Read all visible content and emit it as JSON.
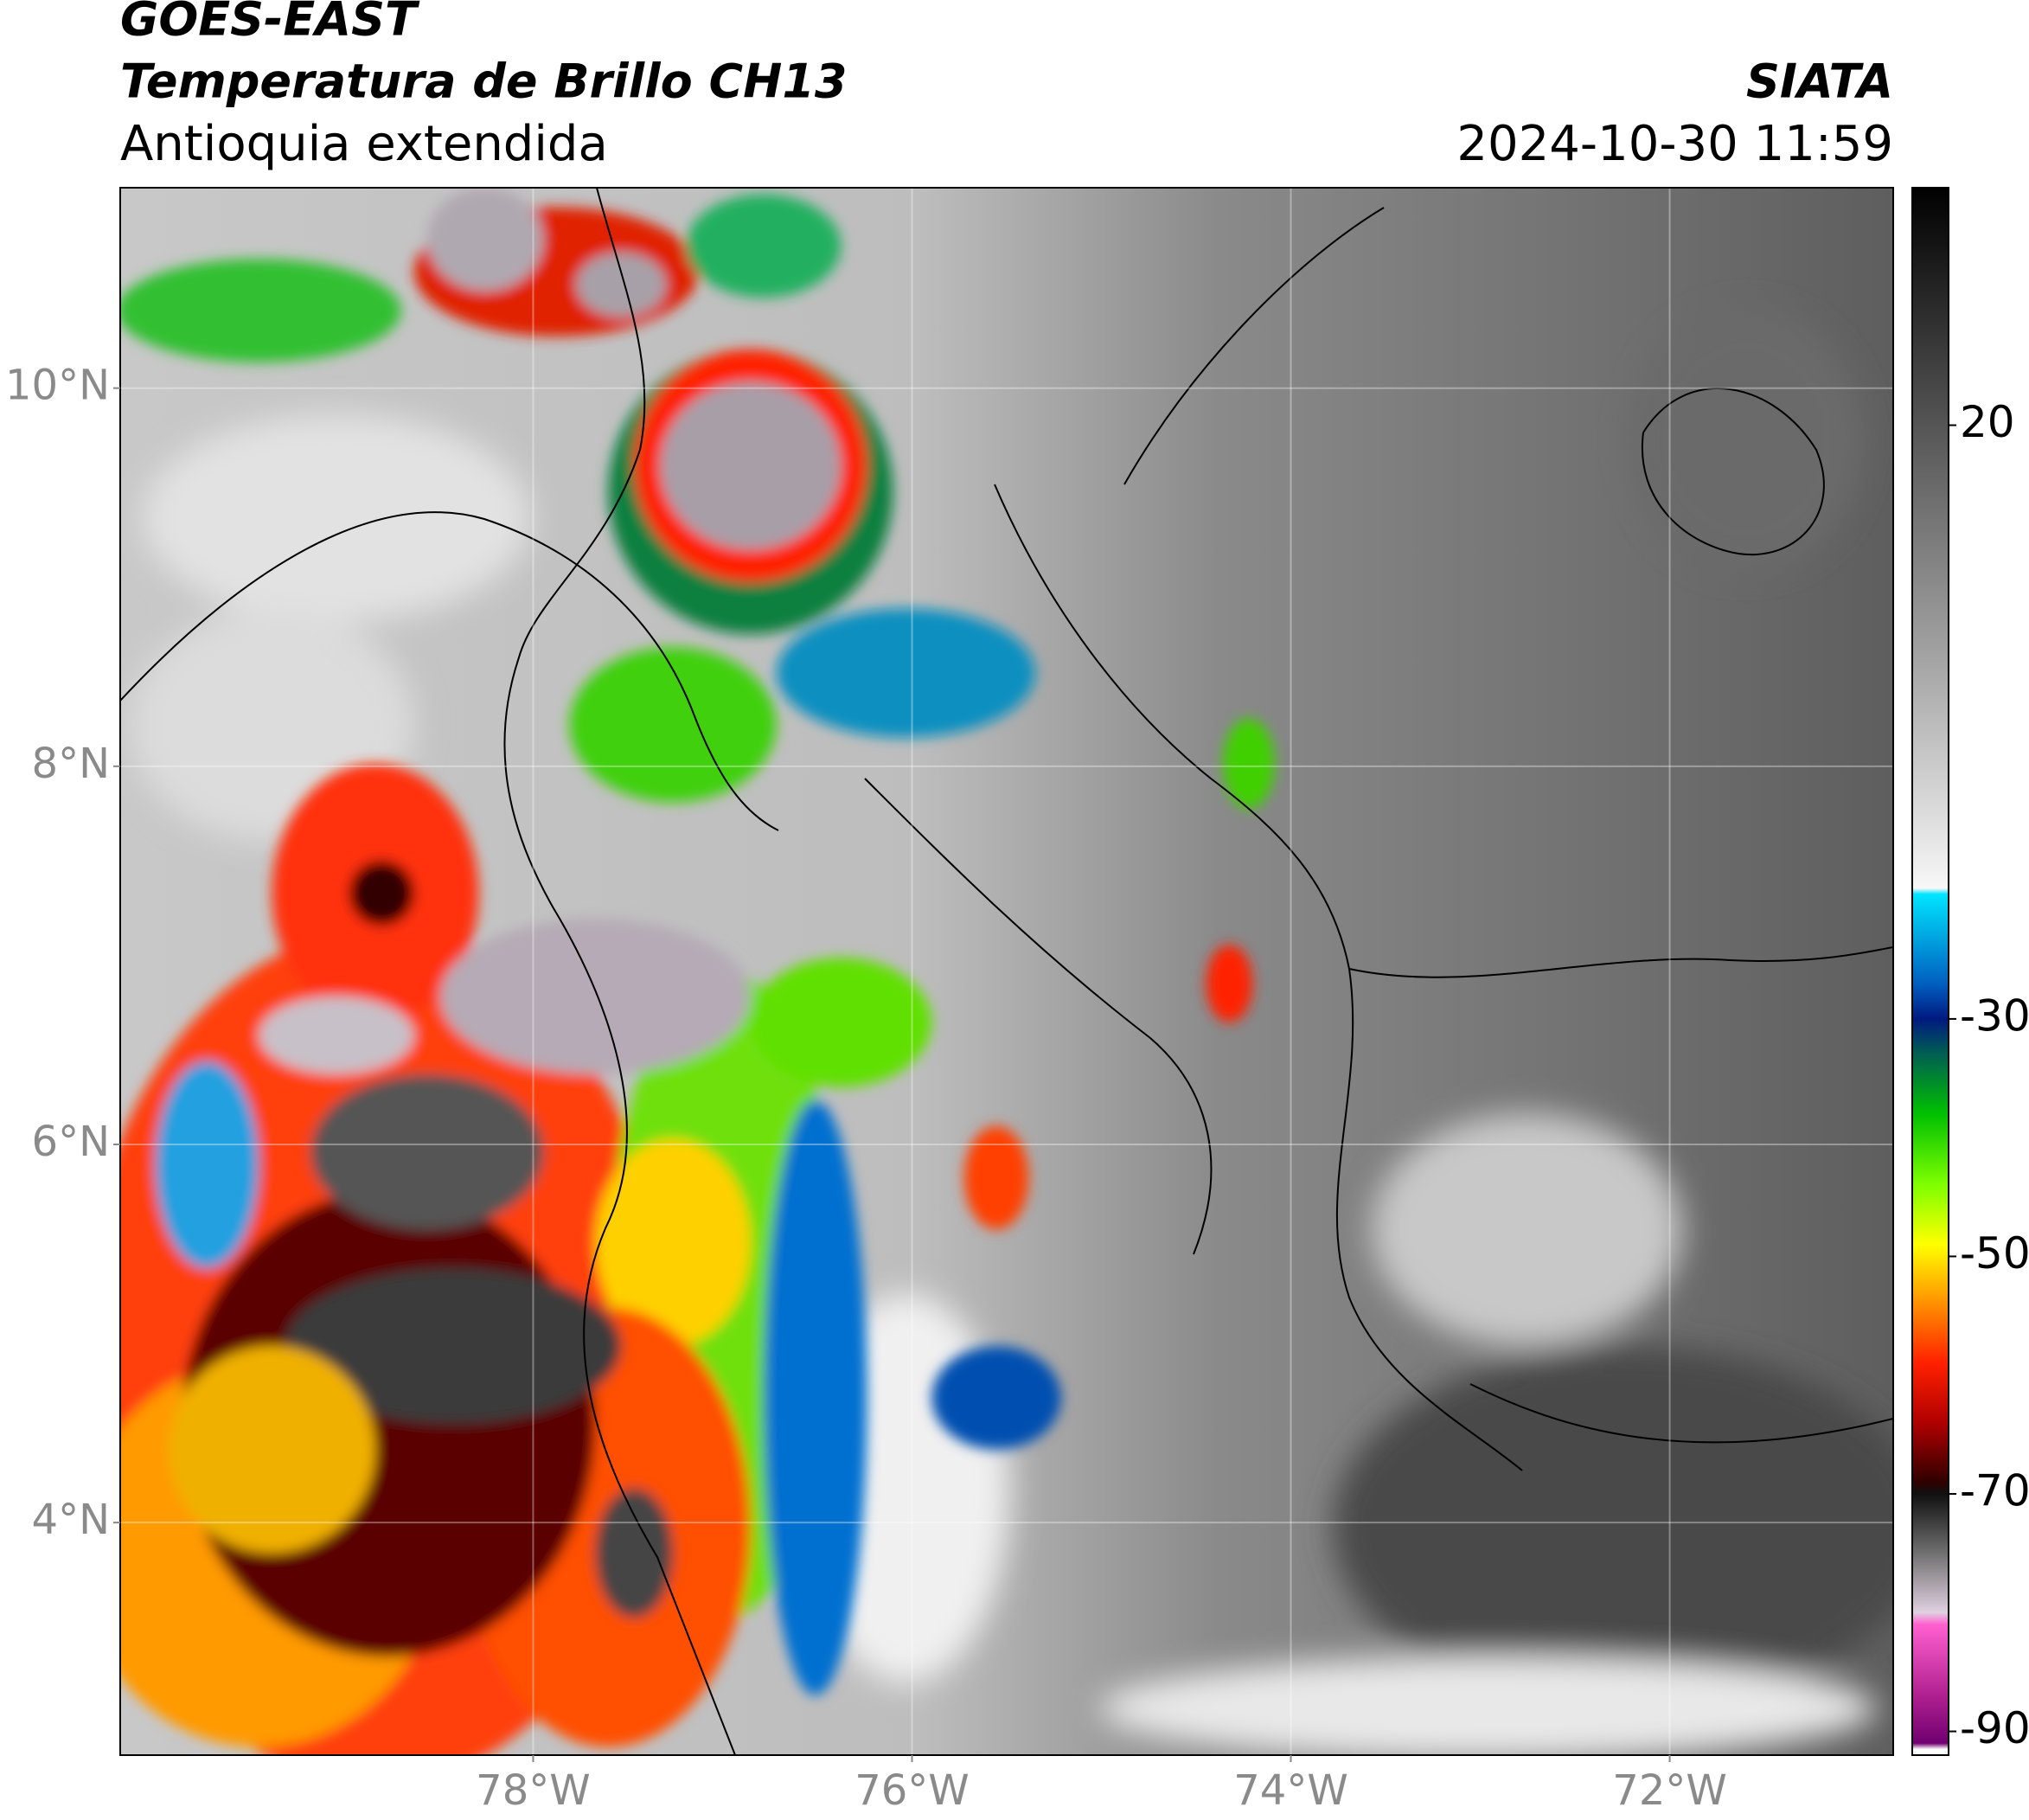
{
  "chart_data": {
    "type": "map",
    "title": "GOES-EAST",
    "subtitle": "Temperatura de Brillo CH13",
    "region": "Antioquia extendida",
    "source": "SIATA",
    "timestamp": "2024-10-30 11:59",
    "xlim": [
      -80.18,
      -70.82
    ],
    "ylim": [
      2.77,
      11.06
    ],
    "xticks": [
      {
        "value": -78,
        "label": "78°W"
      },
      {
        "value": -76,
        "label": "76°W"
      },
      {
        "value": -74,
        "label": "74°W"
      },
      {
        "value": -72,
        "label": "72°W"
      }
    ],
    "yticks": [
      {
        "value": 10,
        "label": "10°N"
      },
      {
        "value": 8,
        "label": "8°N"
      },
      {
        "value": 6,
        "label": "6°N"
      },
      {
        "value": 4,
        "label": "4°N"
      }
    ],
    "grid": true,
    "colorbar": {
      "lim": [
        -92,
        40
      ],
      "ticks": [
        20,
        -30,
        -50,
        -70,
        -90
      ],
      "stops": [
        {
          "value": 40,
          "color": "#000000"
        },
        {
          "value": 20,
          "color": "#555555"
        },
        {
          "value": 0,
          "color": "#a5a5a5"
        },
        {
          "value": -19,
          "color": "#f7f7f7"
        },
        {
          "value": -19.5,
          "color": "#00e5ff"
        },
        {
          "value": -27,
          "color": "#0060c0"
        },
        {
          "value": -30,
          "color": "#001a80"
        },
        {
          "value": -33,
          "color": "#006050"
        },
        {
          "value": -38,
          "color": "#00c000"
        },
        {
          "value": -44,
          "color": "#80ff00"
        },
        {
          "value": -49,
          "color": "#ffff00"
        },
        {
          "value": -54,
          "color": "#ff9000"
        },
        {
          "value": -59,
          "color": "#ff2000"
        },
        {
          "value": -64,
          "color": "#b00000"
        },
        {
          "value": -69,
          "color": "#300000"
        },
        {
          "value": -70,
          "color": "#101010"
        },
        {
          "value": -75,
          "color": "#707070"
        },
        {
          "value": -80,
          "color": "#e0d0e0"
        },
        {
          "value": -81,
          "color": "#ff60d0"
        },
        {
          "value": -87,
          "color": "#b02090"
        },
        {
          "value": -91,
          "color": "#700070"
        },
        {
          "value": -91.5,
          "color": "#ffffff"
        }
      ]
    }
  }
}
